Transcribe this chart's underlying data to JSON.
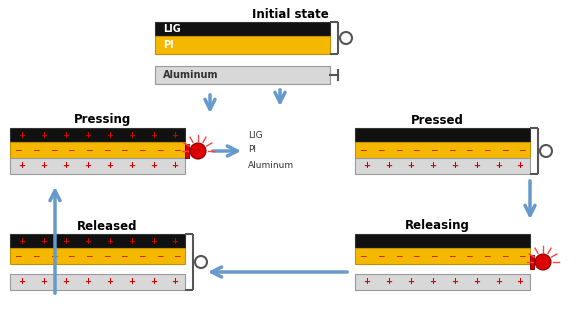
{
  "title_initial": "Initial state",
  "title_pressing": "Pressing",
  "title_pressed": "Pressed",
  "title_released": "Released",
  "title_releasing": "Releasing",
  "lig_color": "#111111",
  "pi_color": "#f5b800",
  "al_color": "#d8d8d8",
  "al_border": "#999999",
  "plus_color": "#cc0000",
  "minus_color": "#cc0000",
  "led_red": "#dd0000",
  "arrow_color": "#6699cc",
  "label_lig": "LIG",
  "label_pi": "PI",
  "label_al": "Aluminum",
  "connector_color": "#555555",
  "title_fontsize": 8.5,
  "label_fontsize": 6.5
}
